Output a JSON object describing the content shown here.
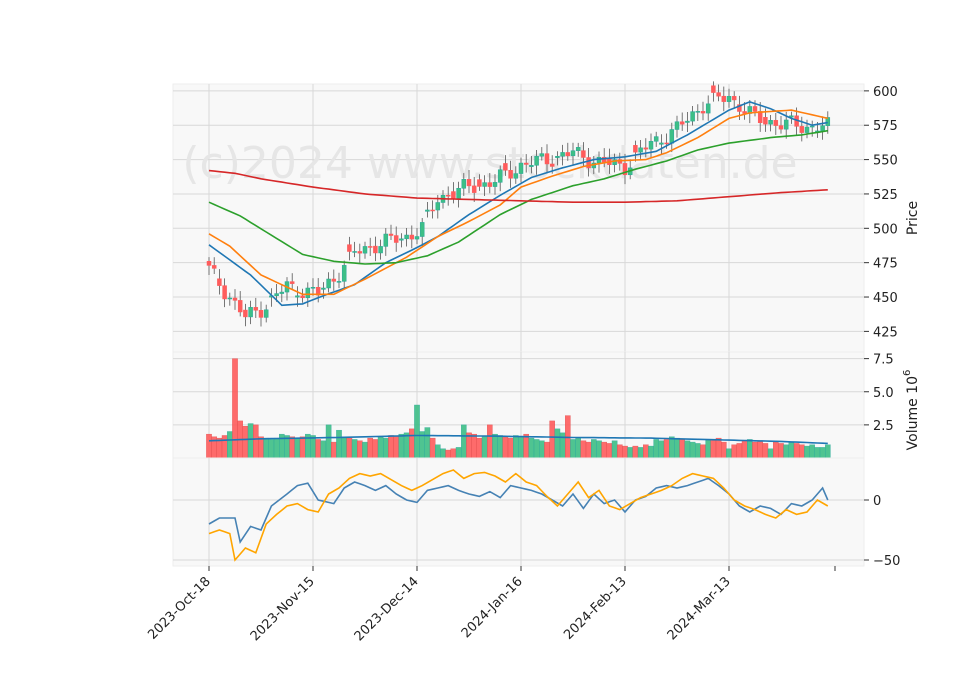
{
  "chart_data": {
    "type": "candlestick",
    "watermark": "(c)2024 www.stockdaten.de",
    "x_ticks": [
      "2023-Oct-18",
      "2023-Nov-15",
      "2023-Dec-14",
      "2024-Jan-16",
      "2024-Feb-13",
      "2024-Mar-13"
    ],
    "price_panel": {
      "ylabel": "Price",
      "ylim": [
        410,
        605
      ],
      "yticks": [
        425,
        450,
        475,
        500,
        525,
        550,
        575,
        600
      ],
      "close_anchors": [
        [
          0,
          470
        ],
        [
          4,
          450
        ],
        [
          7,
          435
        ],
        [
          11,
          444
        ],
        [
          15,
          458
        ],
        [
          21,
          452
        ],
        [
          25,
          468
        ],
        [
          28,
          482
        ],
        [
          32,
          488
        ],
        [
          38,
          494
        ],
        [
          41,
          500
        ],
        [
          44,
          522
        ],
        [
          50,
          530
        ],
        [
          55,
          534
        ],
        [
          60,
          546
        ],
        [
          65,
          550
        ],
        [
          70,
          555
        ],
        [
          75,
          548
        ],
        [
          80,
          545
        ],
        [
          85,
          562
        ],
        [
          90,
          572
        ],
        [
          95,
          590
        ],
        [
          100,
          596
        ],
        [
          105,
          580
        ],
        [
          110,
          576
        ],
        [
          115,
          574
        ],
        [
          119,
          574
        ]
      ],
      "ma_lines": [
        {
          "color": "#1f77b4",
          "anchors": [
            [
              0,
              488
            ],
            [
              8,
              466
            ],
            [
              14,
              444
            ],
            [
              18,
              445
            ],
            [
              22,
              451
            ],
            [
              28,
              459
            ],
            [
              34,
              475
            ],
            [
              40,
              486
            ],
            [
              44,
              494
            ],
            [
              50,
              510
            ],
            [
              56,
              524
            ],
            [
              62,
              537
            ],
            [
              68,
              544
            ],
            [
              74,
              550
            ],
            [
              80,
              552
            ],
            [
              86,
              556
            ],
            [
              92,
              568
            ],
            [
              100,
              586
            ],
            [
              104,
              592
            ],
            [
              108,
              587
            ],
            [
              112,
              580
            ],
            [
              116,
              575
            ],
            [
              119,
              577
            ]
          ]
        },
        {
          "color": "#ff7f0e",
          "anchors": [
            [
              0,
              496
            ],
            [
              4,
              487
            ],
            [
              10,
              466
            ],
            [
              18,
              452
            ],
            [
              24,
              452
            ],
            [
              30,
              463
            ],
            [
              38,
              479
            ],
            [
              44,
              494
            ],
            [
              50,
              505
            ],
            [
              56,
              517
            ],
            [
              60,
              530
            ],
            [
              66,
              538
            ],
            [
              72,
              545
            ],
            [
              78,
              549
            ],
            [
              84,
              550
            ],
            [
              88,
              555
            ],
            [
              94,
              566
            ],
            [
              100,
              580
            ],
            [
              104,
              584
            ],
            [
              112,
              586
            ],
            [
              119,
              580
            ]
          ]
        },
        {
          "color": "#2ca02c",
          "anchors": [
            [
              0,
              519
            ],
            [
              6,
              509
            ],
            [
              12,
              495
            ],
            [
              18,
              481
            ],
            [
              24,
              476
            ],
            [
              30,
              474
            ],
            [
              36,
              475
            ],
            [
              42,
              480
            ],
            [
              48,
              490
            ],
            [
              56,
              510
            ],
            [
              62,
              521
            ],
            [
              70,
              531
            ],
            [
              76,
              536
            ],
            [
              82,
              543
            ],
            [
              88,
              549
            ],
            [
              94,
              557
            ],
            [
              100,
              562
            ],
            [
              108,
              566
            ],
            [
              114,
              568
            ],
            [
              119,
              571
            ]
          ]
        },
        {
          "color": "#d62728",
          "anchors": [
            [
              0,
              542
            ],
            [
              5,
              540
            ],
            [
              10,
              536
            ],
            [
              20,
              530
            ],
            [
              30,
              525
            ],
            [
              40,
              522
            ],
            [
              50,
              521
            ],
            [
              60,
              520
            ],
            [
              70,
              519
            ],
            [
              80,
              519
            ],
            [
              90,
              520
            ],
            [
              100,
              523
            ],
            [
              110,
              526
            ],
            [
              119,
              528
            ]
          ]
        }
      ]
    },
    "volume_panel": {
      "ylabel": "Volume  10",
      "ylabel_exponent": "6",
      "ylim": [
        0,
        8
      ],
      "yticks": [
        2.5,
        5.0,
        7.5
      ],
      "volumes": [
        1.8,
        1.6,
        1.5,
        1.7,
        2.0,
        7.5,
        2.8,
        2.4,
        2.6,
        2.5,
        1.6,
        1.5,
        1.4,
        1.5,
        1.8,
        1.7,
        1.6,
        1.5,
        1.6,
        1.8,
        1.7,
        1.4,
        1.3,
        2.5,
        1.2,
        2.1,
        1.6,
        1.5,
        1.4,
        1.3,
        1.2,
        1.5,
        1.4,
        1.6,
        1.5,
        1.7,
        1.6,
        1.8,
        1.9,
        2.2,
        4.0,
        2.0,
        2.3,
        1.5,
        1.0,
        0.7,
        0.6,
        0.7,
        0.8,
        2.5,
        1.9,
        1.8,
        1.5,
        1.6,
        2.5,
        1.8,
        1.7,
        1.6,
        1.5,
        1.7,
        1.6,
        1.8,
        1.5,
        1.4,
        1.3,
        1.2,
        2.8,
        2.2,
        1.9,
        3.2,
        1.4,
        1.5,
        1.3,
        1.2,
        1.4,
        1.3,
        1.2,
        1.1,
        1.3,
        1.0,
        0.9,
        0.8,
        0.9,
        0.8,
        1.0,
        0.9,
        1.4,
        1.3,
        1.4,
        1.6,
        1.5,
        1.4,
        1.3,
        1.2,
        1.1,
        1.0,
        1.4,
        1.3,
        1.5,
        1.2,
        0.7,
        1.0,
        1.1,
        1.3,
        1.4,
        1.2,
        1.3,
        1.1,
        0.7,
        1.2,
        1.1,
        1.0,
        1.2,
        1.1,
        1.0,
        0.9,
        1.0,
        0.8,
        0.8,
        1.0
      ],
      "avg_anchors": [
        [
          0,
          1.3
        ],
        [
          10,
          1.45
        ],
        [
          25,
          1.55
        ],
        [
          40,
          1.7
        ],
        [
          55,
          1.65
        ],
        [
          70,
          1.55
        ],
        [
          85,
          1.5
        ],
        [
          100,
          1.35
        ],
        [
          110,
          1.25
        ],
        [
          119,
          1.1
        ]
      ]
    },
    "indicator_panel": {
      "ylim": [
        -55,
        35
      ],
      "yticks": [
        0,
        -50
      ],
      "lines": [
        {
          "color": "#4682b4",
          "anchors": [
            [
              0,
              -20
            ],
            [
              2,
              -15
            ],
            [
              5,
              -15
            ],
            [
              6,
              -35
            ],
            [
              8,
              -22
            ],
            [
              10,
              -25
            ],
            [
              12,
              -5
            ],
            [
              15,
              5
            ],
            [
              17,
              12
            ],
            [
              19,
              14
            ],
            [
              21,
              0
            ],
            [
              24,
              -3
            ],
            [
              26,
              10
            ],
            [
              28,
              15
            ],
            [
              30,
              12
            ],
            [
              32,
              8
            ],
            [
              34,
              12
            ],
            [
              36,
              5
            ],
            [
              38,
              0
            ],
            [
              40,
              -2
            ],
            [
              42,
              8
            ],
            [
              44,
              10
            ],
            [
              46,
              12
            ],
            [
              48,
              8
            ],
            [
              50,
              5
            ],
            [
              52,
              3
            ],
            [
              54,
              7
            ],
            [
              56,
              2
            ],
            [
              58,
              12
            ],
            [
              60,
              10
            ],
            [
              62,
              8
            ],
            [
              64,
              5
            ],
            [
              66,
              0
            ],
            [
              68,
              -5
            ],
            [
              70,
              5
            ],
            [
              72,
              -7
            ],
            [
              74,
              5
            ],
            [
              76,
              -3
            ],
            [
              78,
              0
            ],
            [
              80,
              -10
            ],
            [
              82,
              0
            ],
            [
              84,
              3
            ],
            [
              86,
              10
            ],
            [
              88,
              12
            ],
            [
              90,
              10
            ],
            [
              92,
              12
            ],
            [
              94,
              15
            ],
            [
              96,
              18
            ],
            [
              98,
              12
            ],
            [
              100,
              5
            ],
            [
              102,
              -5
            ],
            [
              104,
              -10
            ],
            [
              106,
              -5
            ],
            [
              108,
              -7
            ],
            [
              110,
              -12
            ],
            [
              112,
              -3
            ],
            [
              114,
              -5
            ],
            [
              116,
              0
            ],
            [
              118,
              10
            ],
            [
              119,
              0
            ]
          ]
        },
        {
          "color": "#ffa500",
          "anchors": [
            [
              0,
              -28
            ],
            [
              2,
              -25
            ],
            [
              4,
              -28
            ],
            [
              5,
              -50
            ],
            [
              7,
              -40
            ],
            [
              9,
              -44
            ],
            [
              11,
              -20
            ],
            [
              13,
              -12
            ],
            [
              15,
              -5
            ],
            [
              17,
              -3
            ],
            [
              19,
              -8
            ],
            [
              21,
              -10
            ],
            [
              23,
              5
            ],
            [
              25,
              10
            ],
            [
              27,
              18
            ],
            [
              29,
              22
            ],
            [
              31,
              20
            ],
            [
              33,
              22
            ],
            [
              35,
              17
            ],
            [
              37,
              12
            ],
            [
              39,
              8
            ],
            [
              41,
              12
            ],
            [
              43,
              17
            ],
            [
              45,
              22
            ],
            [
              47,
              25
            ],
            [
              49,
              18
            ],
            [
              51,
              22
            ],
            [
              53,
              23
            ],
            [
              55,
              20
            ],
            [
              57,
              15
            ],
            [
              59,
              22
            ],
            [
              61,
              15
            ],
            [
              63,
              12
            ],
            [
              65,
              3
            ],
            [
              67,
              -5
            ],
            [
              69,
              5
            ],
            [
              71,
              15
            ],
            [
              73,
              2
            ],
            [
              75,
              8
            ],
            [
              77,
              -5
            ],
            [
              79,
              -8
            ],
            [
              81,
              -3
            ],
            [
              83,
              2
            ],
            [
              85,
              5
            ],
            [
              87,
              8
            ],
            [
              89,
              12
            ],
            [
              91,
              18
            ],
            [
              93,
              22
            ],
            [
              95,
              20
            ],
            [
              97,
              18
            ],
            [
              99,
              10
            ],
            [
              101,
              0
            ],
            [
              103,
              -5
            ],
            [
              105,
              -8
            ],
            [
              107,
              -12
            ],
            [
              109,
              -15
            ],
            [
              111,
              -8
            ],
            [
              113,
              -12
            ],
            [
              115,
              -10
            ],
            [
              117,
              0
            ],
            [
              119,
              -5
            ]
          ]
        }
      ]
    },
    "colors": {
      "up": "#26a69a",
      "up_fill": "#3dbf86",
      "down": "#ff5c5c",
      "grid": "#d8d8d8",
      "panel_bg": "#f8f8f8",
      "volume_avg": "#1f77b4"
    }
  }
}
